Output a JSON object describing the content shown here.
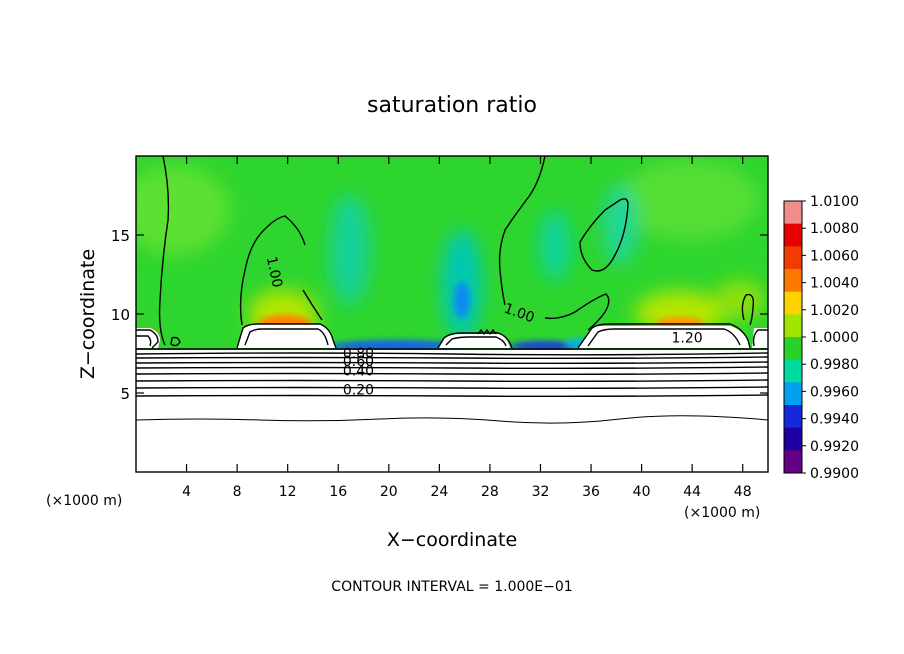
{
  "chart_data": {
    "type": "heatmap",
    "title": "saturation ratio",
    "xlabel": "X−coordinate",
    "ylabel": "Z−coordinate",
    "x_unit_left": "(×1000 m)",
    "x_unit_right": "(×1000 m)",
    "xlim": [
      0,
      50
    ],
    "ylim": [
      0,
      20
    ],
    "x_ticks": [
      4,
      8,
      12,
      16,
      20,
      24,
      28,
      32,
      36,
      40,
      44,
      48
    ],
    "y_ticks": [
      5,
      10,
      15
    ],
    "colorbar": {
      "levels": [
        "1.0100",
        "1.0080",
        "1.0060",
        "1.0040",
        "1.0020",
        "1.0000",
        "0.9980",
        "0.9960",
        "0.9940",
        "0.9920",
        "0.9900"
      ],
      "colors": [
        "#f08c8c",
        "#e60000",
        "#f03c00",
        "#ff7800",
        "#ffd200",
        "#a0e600",
        "#28d228",
        "#00dca0",
        "#00a0f0",
        "#1428dc",
        "#1e00a0",
        "#640082"
      ]
    },
    "contour_labels": [
      {
        "text": "1.00",
        "x": 10.6,
        "z": 12.6
      },
      {
        "text": "1.00",
        "x": 30.2,
        "z": 9.8
      },
      {
        "text": "1.20",
        "x": 43.6,
        "z": 8.2
      },
      {
        "text": "0.80",
        "x": 17.6,
        "z": 7.2
      },
      {
        "text": "0.60",
        "x": 17.6,
        "z": 6.7
      },
      {
        "text": "0.40",
        "x": 17.6,
        "z": 6.1
      },
      {
        "text": "0.20",
        "x": 17.6,
        "z": 4.9
      }
    ],
    "footer": "CONTOUR INTERVAL =  1.000E−01"
  }
}
